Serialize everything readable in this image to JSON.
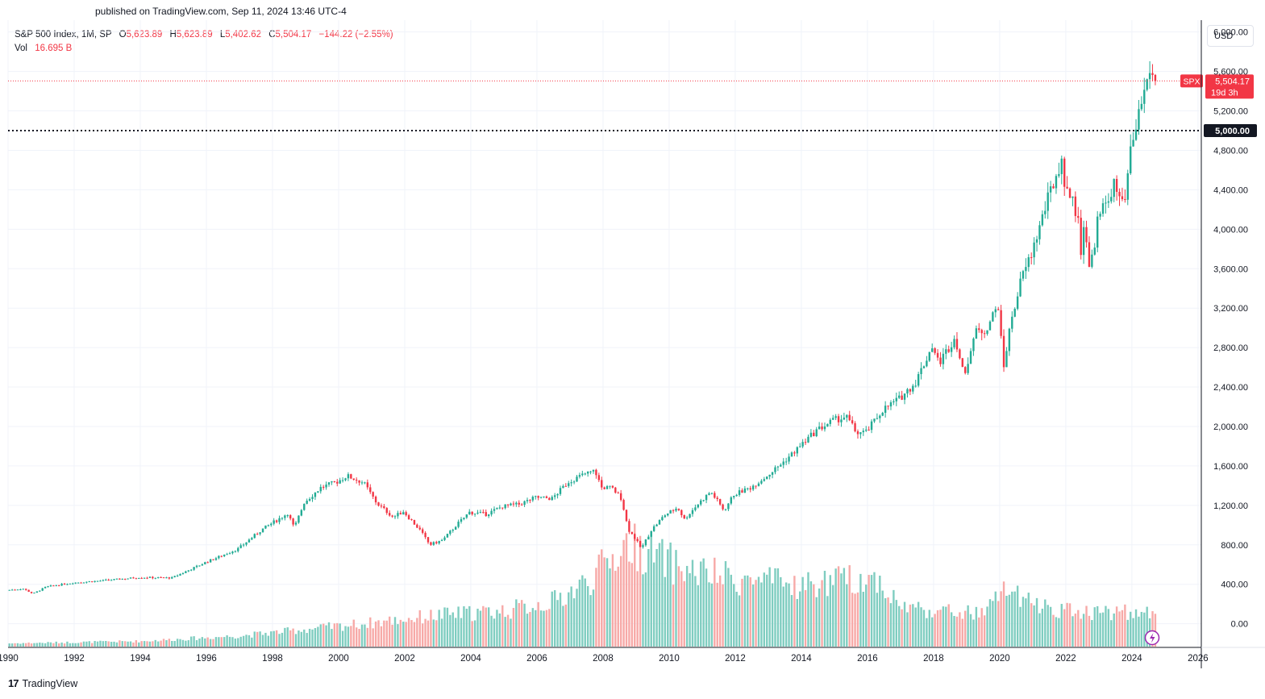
{
  "header": {
    "published": "published on TradingView.com, Sep 11, 2024 13:46 UTC-4"
  },
  "legend": {
    "symbol": "S&P 500 Index, 1M, SP",
    "open_label": "O",
    "open": "5,623.89",
    "high_label": "H",
    "high": "5,623.89",
    "low_label": "L",
    "low": "5,402.62",
    "close_label": "C",
    "close": "5,504.17",
    "change": "−144.22 (−2.55%)",
    "vol_label": "Vol",
    "vol": "16.695 B"
  },
  "currency_button": "USD",
  "footer": {
    "logo_mark": "17",
    "brand": "TradingView"
  },
  "price_tag": {
    "ticker": "SPX",
    "price": "5,504.17",
    "countdown": "19d 3h"
  },
  "level_tag": "5,000.00",
  "chart_data": {
    "type": "candlestick",
    "title": "S&P 500 Index, 1M, SP",
    "y_ticks": [
      "0.00",
      "400.00",
      "800.00",
      "1,200.00",
      "1,600.00",
      "2,000.00",
      "2,400.00",
      "2,800.00",
      "3,200.00",
      "3,600.00",
      "4,000.00",
      "4,400.00",
      "4,800.00",
      "5,200.00",
      "5,600.00",
      "6,000.00"
    ],
    "x_ticks": [
      "1990",
      "1992",
      "1994",
      "1996",
      "1998",
      "2000",
      "2002",
      "2004",
      "2006",
      "2008",
      "2010",
      "2012",
      "2014",
      "2016",
      "2018",
      "2020",
      "2022",
      "2024",
      "2026"
    ],
    "xlim": [
      1990,
      2026.1
    ],
    "ylim": [
      -240,
      6120
    ],
    "horizontal_line": 5000,
    "last_price": 5504.17,
    "colors": {
      "up": "#22ab94",
      "down": "#f23645",
      "up_volume": "#7fcdc0",
      "down_volume": "#f7a9a7",
      "level_line": "#131722",
      "grid": "#f0f3fa"
    },
    "price_anchors": [
      [
        1990.0,
        340
      ],
      [
        1990.5,
        355
      ],
      [
        1990.8,
        305
      ],
      [
        1991.2,
        375
      ],
      [
        1992.0,
        415
      ],
      [
        1993.0,
        440
      ],
      [
        1994.0,
        470
      ],
      [
        1995.0,
        465
      ],
      [
        1996.0,
        620
      ],
      [
        1997.0,
        760
      ],
      [
        1997.7,
        950
      ],
      [
        1998.5,
        1120
      ],
      [
        1998.7,
        970
      ],
      [
        1999.0,
        1230
      ],
      [
        1999.5,
        1380
      ],
      [
        2000.0,
        1440
      ],
      [
        2000.3,
        1500
      ],
      [
        2000.8,
        1430
      ],
      [
        2001.2,
        1220
      ],
      [
        2001.7,
        1080
      ],
      [
        2002.0,
        1140
      ],
      [
        2002.5,
        950
      ],
      [
        2002.8,
        800
      ],
      [
        2003.2,
        850
      ],
      [
        2003.6,
        1000
      ],
      [
        2004.0,
        1130
      ],
      [
        2004.5,
        1110
      ],
      [
        2005.0,
        1190
      ],
      [
        2005.5,
        1210
      ],
      [
        2006.0,
        1280
      ],
      [
        2006.5,
        1270
      ],
      [
        2007.0,
        1440
      ],
      [
        2007.5,
        1520
      ],
      [
        2007.8,
        1550
      ],
      [
        2008.0,
        1380
      ],
      [
        2008.3,
        1380
      ],
      [
        2008.6,
        1270
      ],
      [
        2008.8,
        960
      ],
      [
        2009.0,
        870
      ],
      [
        2009.2,
        760
      ],
      [
        2009.5,
        950
      ],
      [
        2009.9,
        1100
      ],
      [
        2010.3,
        1180
      ],
      [
        2010.5,
        1060
      ],
      [
        2010.9,
        1210
      ],
      [
        2011.3,
        1340
      ],
      [
        2011.7,
        1150
      ],
      [
        2012.0,
        1310
      ],
      [
        2012.5,
        1380
      ],
      [
        2013.0,
        1500
      ],
      [
        2013.5,
        1640
      ],
      [
        2014.0,
        1800
      ],
      [
        2014.5,
        1960
      ],
      [
        2015.0,
        2060
      ],
      [
        2015.4,
        2100
      ],
      [
        2015.7,
        1940
      ],
      [
        2016.0,
        1940
      ],
      [
        2016.5,
        2170
      ],
      [
        2017.0,
        2280
      ],
      [
        2017.5,
        2450
      ],
      [
        2018.0,
        2820
      ],
      [
        2018.2,
        2640
      ],
      [
        2018.7,
        2910
      ],
      [
        2018.95,
        2510
      ],
      [
        2019.3,
        2950
      ],
      [
        2019.6,
        2980
      ],
      [
        2020.0,
        3230
      ],
      [
        2020.15,
        2580
      ],
      [
        2020.4,
        3100
      ],
      [
        2020.7,
        3500
      ],
      [
        2021.0,
        3750
      ],
      [
        2021.5,
        4300
      ],
      [
        2021.9,
        4700
      ],
      [
        2022.0,
        4500
      ],
      [
        2022.4,
        4130
      ],
      [
        2022.5,
        3790
      ],
      [
        2022.6,
        4130
      ],
      [
        2022.75,
        3590
      ],
      [
        2022.9,
        3840
      ],
      [
        2023.0,
        4080
      ],
      [
        2023.5,
        4450
      ],
      [
        2023.8,
        4190
      ],
      [
        2024.0,
        4770
      ],
      [
        2024.3,
        5250
      ],
      [
        2024.5,
        5500
      ],
      [
        2024.6,
        5650
      ],
      [
        2024.7,
        5504
      ]
    ],
    "volume_anchors": [
      [
        1990.0,
        30
      ],
      [
        1994.0,
        50
      ],
      [
        1997.0,
        100
      ],
      [
        1999.0,
        160
      ],
      [
        2001.0,
        220
      ],
      [
        2003.0,
        290
      ],
      [
        2005.0,
        330
      ],
      [
        2006.5,
        420
      ],
      [
        2007.5,
        600
      ],
      [
        2008.7,
        950
      ],
      [
        2009.2,
        880
      ],
      [
        2010.5,
        700
      ],
      [
        2012.0,
        620
      ],
      [
        2014.0,
        560
      ],
      [
        2015.5,
        620
      ],
      [
        2016.3,
        620
      ],
      [
        2016.9,
        380
      ],
      [
        2018.0,
        330
      ],
      [
        2019.5,
        300
      ],
      [
        2020.15,
        560
      ],
      [
        2020.6,
        420
      ],
      [
        2022.0,
        330
      ],
      [
        2023.5,
        320
      ],
      [
        2024.6,
        300
      ]
    ]
  }
}
